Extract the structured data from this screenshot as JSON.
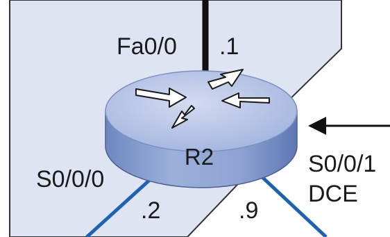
{
  "diagram": {
    "router": {
      "name": "R2",
      "icon": "router-icon"
    },
    "interfaces": {
      "fa0_0": {
        "name": "Fa0/0",
        "host": ".1"
      },
      "s0_0_0": {
        "name": "S0/0/0",
        "host": ".2"
      },
      "s0_0_1": {
        "name": "S0/0/1",
        "role": "DCE",
        "host": ".9"
      }
    },
    "colors": {
      "area_fill": "#dfe4f3",
      "area_border": "#333333",
      "router_top": "#b9c6e3",
      "router_side": "#8ea3d2",
      "serial_link": "#1f63b0",
      "ethernet_link": "#111111"
    }
  }
}
